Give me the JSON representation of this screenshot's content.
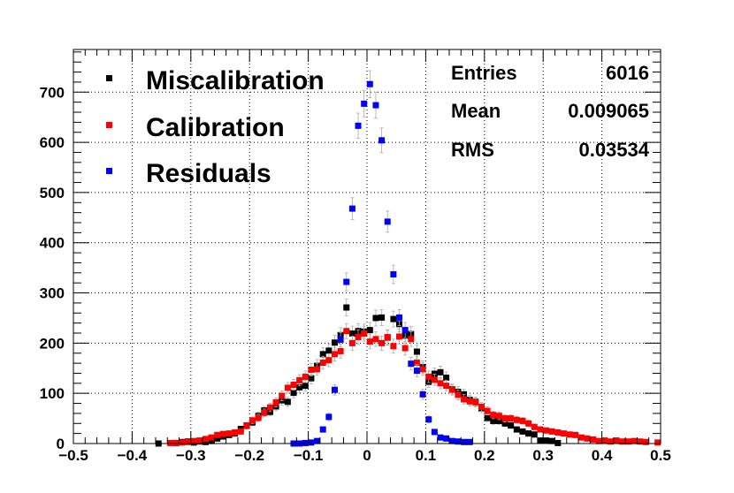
{
  "chart_data": {
    "type": "scatter",
    "xlim": [
      -0.5,
      0.5
    ],
    "ylim": [
      0,
      785
    ],
    "grid": true,
    "x_ticks": [
      -0.5,
      -0.4,
      -0.3,
      -0.2,
      -0.1,
      0,
      0.1,
      0.2,
      0.3,
      0.4,
      0.5
    ],
    "x_tick_labels": [
      "−0.5",
      "−0.4",
      "−0.3",
      "−0.2",
      "−0.1",
      "0",
      "0.1",
      "0.2",
      "0.3",
      "0.4",
      "0.5"
    ],
    "y_ticks": [
      0,
      100,
      200,
      300,
      400,
      500,
      600,
      700
    ],
    "y_tick_labels": [
      "0",
      "100",
      "200",
      "300",
      "400",
      "500",
      "600",
      "700"
    ],
    "legend_position": "top-left",
    "series": [
      {
        "name": "Miscalibration",
        "color": "#000000",
        "x": [
          -0.355,
          -0.325,
          -0.315,
          -0.305,
          -0.295,
          -0.285,
          -0.275,
          -0.265,
          -0.255,
          -0.245,
          -0.235,
          -0.225,
          -0.215,
          -0.205,
          -0.195,
          -0.185,
          -0.175,
          -0.165,
          -0.155,
          -0.145,
          -0.135,
          -0.125,
          -0.115,
          -0.105,
          -0.095,
          -0.085,
          -0.075,
          -0.065,
          -0.055,
          -0.045,
          -0.035,
          -0.025,
          -0.015,
          -0.005,
          0.005,
          0.015,
          0.025,
          0.035,
          0.045,
          0.055,
          0.065,
          0.075,
          0.085,
          0.095,
          0.105,
          0.115,
          0.125,
          0.135,
          0.145,
          0.155,
          0.165,
          0.175,
          0.185,
          0.195,
          0.205,
          0.215,
          0.225,
          0.235,
          0.245,
          0.255,
          0.265,
          0.275,
          0.285,
          0.295,
          0.305,
          0.315,
          0.325
        ],
        "y": [
          0,
          1,
          3,
          4,
          2,
          4,
          3,
          5,
          10,
          14,
          17,
          20,
          29,
          36,
          42,
          55,
          66,
          63,
          74,
          86,
          83,
          101,
          112,
          115,
          130,
          155,
          178,
          185,
          201,
          216,
          271,
          219,
          224,
          223,
          226,
          250,
          251,
          211,
          248,
          238,
          215,
          218,
          183,
          152,
          123,
          139,
          142,
          131,
          108,
          103,
          98,
          87,
          83,
          70,
          51,
          45,
          45,
          40,
          36,
          28,
          24,
          20,
          18,
          6,
          6,
          5,
          1
        ]
      },
      {
        "name": "Calibration",
        "color": "#ff0000",
        "x": [
          -0.335,
          -0.325,
          -0.315,
          -0.305,
          -0.295,
          -0.285,
          -0.275,
          -0.265,
          -0.255,
          -0.245,
          -0.235,
          -0.225,
          -0.215,
          -0.205,
          -0.195,
          -0.185,
          -0.175,
          -0.165,
          -0.155,
          -0.145,
          -0.135,
          -0.125,
          -0.115,
          -0.105,
          -0.095,
          -0.085,
          -0.075,
          -0.065,
          -0.055,
          -0.045,
          -0.035,
          -0.025,
          -0.015,
          -0.005,
          0.005,
          0.015,
          0.025,
          0.035,
          0.045,
          0.055,
          0.065,
          0.075,
          0.085,
          0.095,
          0.105,
          0.115,
          0.125,
          0.135,
          0.145,
          0.155,
          0.165,
          0.175,
          0.185,
          0.195,
          0.205,
          0.215,
          0.225,
          0.235,
          0.245,
          0.255,
          0.265,
          0.275,
          0.285,
          0.295,
          0.305,
          0.315,
          0.325,
          0.335,
          0.345,
          0.355,
          0.365,
          0.375,
          0.385,
          0.395,
          0.405,
          0.415,
          0.425,
          0.435,
          0.445,
          0.455,
          0.465,
          0.475,
          0.495
        ],
        "y": [
          1,
          1,
          2,
          3,
          5,
          6,
          9,
          12,
          17,
          19,
          20,
          22,
          24,
          35,
          46,
          51,
          61,
          72,
          82,
          95,
          111,
          117,
          126,
          133,
          147,
          148,
          161,
          166,
          178,
          184,
          224,
          200,
          212,
          219,
          203,
          208,
          200,
          212,
          194,
          213,
          190,
          208,
          161,
          148,
          133,
          127,
          120,
          115,
          107,
          97,
          88,
          84,
          82,
          73,
          65,
          57,
          55,
          50,
          50,
          47,
          45,
          40,
          33,
          28,
          26,
          24,
          22,
          20,
          18,
          17,
          12,
          10,
          8,
          5,
          6,
          4,
          6,
          4,
          4,
          5,
          4,
          3,
          2
        ]
      },
      {
        "name": "Residuals",
        "color": "#0000ff",
        "x": [
          -0.125,
          -0.115,
          -0.105,
          -0.095,
          -0.085,
          -0.075,
          -0.065,
          -0.055,
          -0.045,
          -0.035,
          -0.025,
          -0.015,
          -0.005,
          0.005,
          0.015,
          0.025,
          0.035,
          0.045,
          0.055,
          0.065,
          0.075,
          0.085,
          0.095,
          0.105,
          0.115,
          0.125,
          0.135,
          0.145,
          0.155,
          0.165,
          0.175
        ],
        "y": [
          0,
          0,
          1,
          2,
          5,
          28,
          53,
          107,
          207,
          322,
          468,
          633,
          677,
          716,
          674,
          604,
          442,
          337,
          251,
          226,
          159,
          145,
          98,
          48,
          23,
          12,
          10,
          5,
          4,
          3,
          3
        ]
      }
    ]
  },
  "legend": {
    "items": [
      {
        "label": "Miscalibration",
        "color": "#000000"
      },
      {
        "label": "Calibration",
        "color": "#ff0000"
      },
      {
        "label": "Residuals",
        "color": "#0000ff"
      }
    ]
  },
  "stats": {
    "entries_label": "Entries",
    "entries_value": "6016",
    "mean_label": "Mean",
    "mean_value": "0.009065",
    "rms_label": "RMS",
    "rms_value": "0.03534"
  }
}
